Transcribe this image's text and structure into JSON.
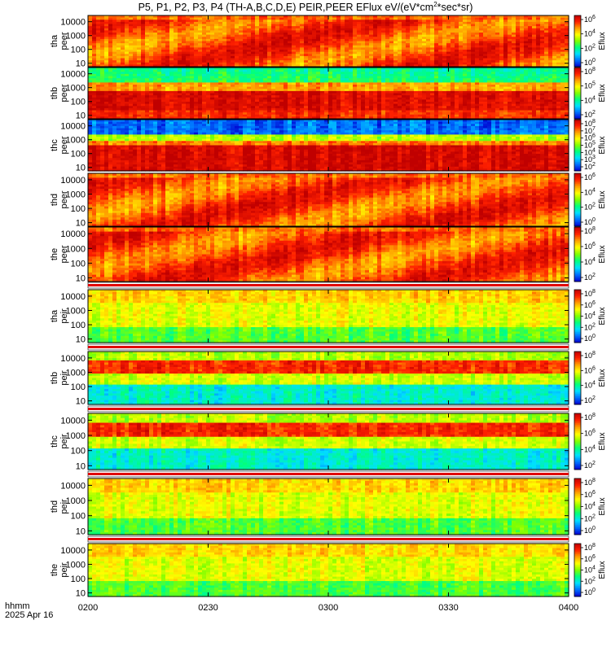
{
  "title_pre": "P5, P1, P2, P3, P4 (TH-A,B,C,D,E) PEIR,PEER EFlux eV/(eV*cm",
  "title_sup": "2",
  "title_post": "*sec*sr)",
  "footer": {
    "line1": "hhmm",
    "line2": "2025 Apr 16"
  },
  "chart_data": {
    "type": "heatmap",
    "x_ticks": [
      "0200",
      "0230",
      "0300",
      "0330",
      "0400"
    ],
    "x_range": [
      "02:00",
      "04:00"
    ],
    "colorbar_label": "Eflux",
    "colormap": [
      "#ffffff",
      "#0000d0",
      "#0070ff",
      "#00e0ff",
      "#00ff80",
      "#80ff00",
      "#ffff00",
      "#ffa000",
      "#ff2000",
      "#c00000"
    ],
    "panels": [
      {
        "label1": "tha",
        "label2": "peer",
        "y_ticks": [
          "10000",
          "1000",
          "100",
          "10"
        ],
        "cbar_ticks": [
          {
            "b": "10",
            "e": "6"
          },
          {
            "b": "10",
            "e": "4"
          },
          {
            "b": "10",
            "e": "2"
          },
          {
            "b": "10",
            "e": "0"
          }
        ],
        "profile": "peer_hot",
        "white_strip": false
      },
      {
        "label1": "thb",
        "label2": "peer",
        "y_ticks": [
          "10000",
          "1000",
          "100",
          "10"
        ],
        "cbar_ticks": [
          {
            "b": "10",
            "e": "8"
          },
          {
            "b": "10",
            "e": "5"
          },
          {
            "b": "10",
            "e": "4"
          },
          {
            "b": "10",
            "e": "2"
          }
        ],
        "profile": "peer_band",
        "white_strip": false
      },
      {
        "label1": "thc",
        "label2": "peer",
        "y_ticks": [
          "10000",
          "1000",
          "100",
          "10"
        ],
        "cbar_ticks": [
          {
            "b": "10",
            "e": "8"
          },
          {
            "b": "10",
            "e": "7"
          },
          {
            "b": "10",
            "e": "6"
          },
          {
            "b": "10",
            "e": "5"
          },
          {
            "b": "10",
            "e": "4"
          },
          {
            "b": "10",
            "e": "3"
          },
          {
            "b": "10",
            "e": "2"
          }
        ],
        "profile": "peer_band_blue",
        "white_strip": false
      },
      {
        "label1": "thd",
        "label2": "peer",
        "y_ticks": [
          "10000",
          "1000",
          "100",
          "10"
        ],
        "cbar_ticks": [
          {
            "b": "10",
            "e": "6"
          },
          {
            "b": "10",
            "e": "4"
          },
          {
            "b": "10",
            "e": "2"
          },
          {
            "b": "10",
            "e": "0"
          }
        ],
        "profile": "peer_hot",
        "white_strip": false
      },
      {
        "label1": "the",
        "label2": "peer",
        "y_ticks": [
          "10000",
          "1000",
          "100",
          "10"
        ],
        "cbar_ticks": [
          {
            "b": "10",
            "e": "8"
          },
          {
            "b": "10",
            "e": "6"
          },
          {
            "b": "10",
            "e": "4"
          },
          {
            "b": "10",
            "e": "2"
          }
        ],
        "profile": "peer_hot",
        "white_strip": false
      },
      {
        "label1": "tha",
        "label2": "peir",
        "y_ticks": [
          "10000",
          "1000",
          "100",
          "10"
        ],
        "cbar_ticks": [
          {
            "b": "10",
            "e": "8"
          },
          {
            "b": "10",
            "e": "6"
          },
          {
            "b": "10",
            "e": "4"
          },
          {
            "b": "10",
            "e": "2"
          },
          {
            "b": "10",
            "e": "0"
          }
        ],
        "profile": "peir_warm",
        "white_strip": true
      },
      {
        "label1": "thb",
        "label2": "peir",
        "y_ticks": [
          "10000",
          "1000",
          "100",
          "10"
        ],
        "cbar_ticks": [
          {
            "b": "10",
            "e": "8"
          },
          {
            "b": "10",
            "e": "6"
          },
          {
            "b": "10",
            "e": "4"
          },
          {
            "b": "10",
            "e": "2"
          }
        ],
        "profile": "peir_band",
        "white_strip": true
      },
      {
        "label1": "thc",
        "label2": "peir",
        "y_ticks": [
          "10000",
          "1000",
          "100",
          "10"
        ],
        "cbar_ticks": [
          {
            "b": "10",
            "e": "8"
          },
          {
            "b": "10",
            "e": "6"
          },
          {
            "b": "10",
            "e": "4"
          },
          {
            "b": "10",
            "e": "2"
          }
        ],
        "profile": "peir_band",
        "white_strip": true
      },
      {
        "label1": "thd",
        "label2": "peir",
        "y_ticks": [
          "10000",
          "1000",
          "100",
          "10"
        ],
        "cbar_ticks": [
          {
            "b": "10",
            "e": "8"
          },
          {
            "b": "10",
            "e": "6"
          },
          {
            "b": "10",
            "e": "4"
          },
          {
            "b": "10",
            "e": "2"
          },
          {
            "b": "10",
            "e": "0"
          }
        ],
        "profile": "peir_warm",
        "white_strip": true
      },
      {
        "label1": "the",
        "label2": "peir",
        "y_ticks": [
          "10000",
          "1000",
          "100",
          "10"
        ],
        "cbar_ticks": [
          {
            "b": "10",
            "e": "8"
          },
          {
            "b": "10",
            "e": "6"
          },
          {
            "b": "10",
            "e": "4"
          },
          {
            "b": "10",
            "e": "2"
          },
          {
            "b": "10",
            "e": "0"
          }
        ],
        "profile": "peir_warm",
        "white_strip": true
      }
    ]
  }
}
